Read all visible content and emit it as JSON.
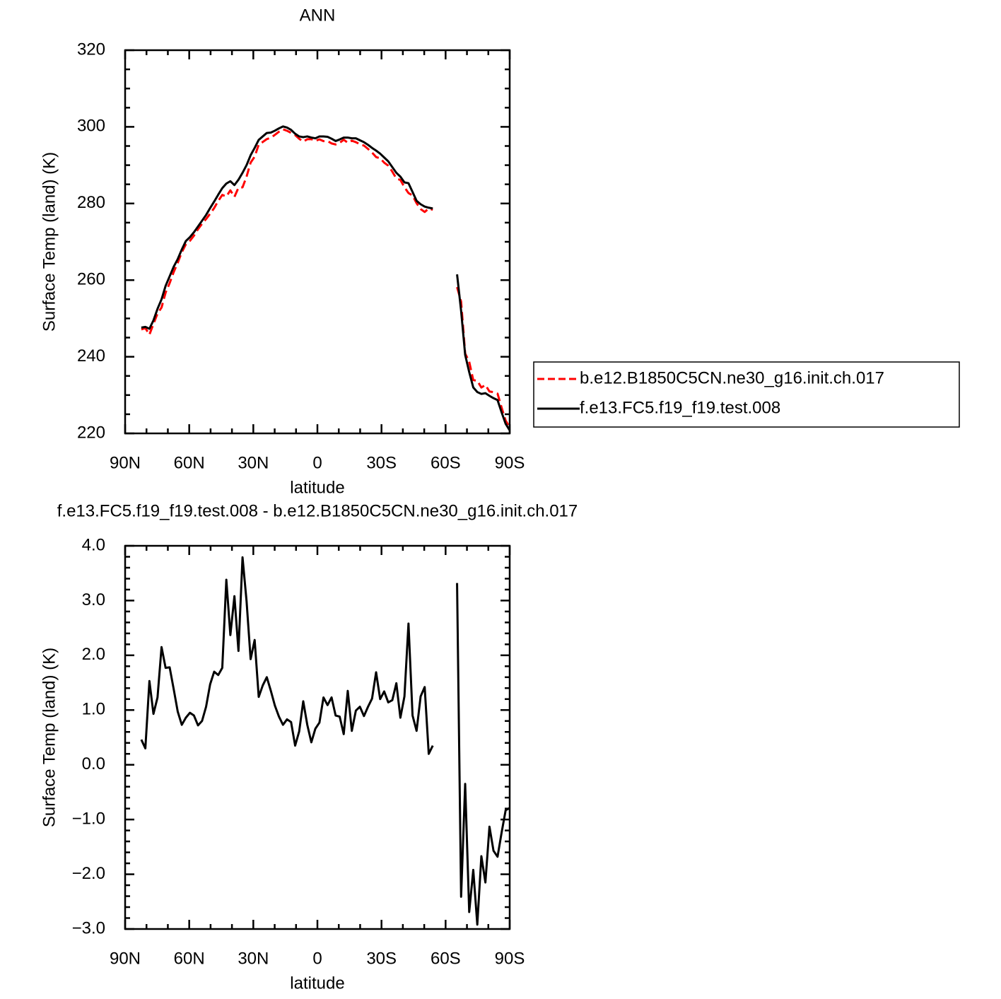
{
  "chart_data": [
    {
      "type": "line",
      "title": "ANN",
      "xlabel": "latitude",
      "ylabel": "Surface Temp (land) (K)",
      "x": [
        82.42,
        80.53,
        78.63,
        76.74,
        74.84,
        72.95,
        71.05,
        69.16,
        67.26,
        65.37,
        63.47,
        61.58,
        59.68,
        57.79,
        55.89,
        54.0,
        52.11,
        50.21,
        48.32,
        46.42,
        44.53,
        42.63,
        40.74,
        38.84,
        36.95,
        35.05,
        33.16,
        31.26,
        29.37,
        27.47,
        25.58,
        23.69,
        21.79,
        19.89,
        18.0,
        16.11,
        14.21,
        12.32,
        10.42,
        8.53,
        6.63,
        4.74,
        2.84,
        0.95,
        -0.95,
        -2.84,
        -4.74,
        -6.63,
        -8.53,
        -10.42,
        -12.32,
        -14.21,
        -16.11,
        -18.0,
        -19.89,
        -21.79,
        -23.69,
        -25.58,
        -27.47,
        -29.37,
        -31.26,
        -33.16,
        -35.05,
        -36.95,
        -38.84,
        -40.74,
        -42.63,
        -44.53,
        -46.42,
        -48.32,
        -50.21,
        -52.11,
        -54.0,
        -55.89,
        -65.37,
        -67.26,
        -69.16,
        -71.05,
        -72.95,
        -74.84,
        -76.74,
        -78.63,
        -80.53,
        -82.42,
        -84.32,
        -86.21,
        -88.11,
        -90.0
      ],
      "series": [
        {
          "name": "b.e12.B1850C5CN.ne30_g16.init.ch.017",
          "color": "#ff0000",
          "dashed": true,
          "values": [
            247.14,
            247.5,
            245.77,
            248.57,
            251.27,
            252.85,
            256.73,
            259.22,
            262.12,
            264.53,
            267.27,
            269.34,
            270.25,
            271.6,
            273.28,
            274.7,
            275.94,
            277.33,
            278.8,
            280.66,
            282.23,
            281.82,
            283.43,
            281.72,
            284.12,
            284.21,
            287.01,
            290.67,
            292.22,
            295.36,
            296.05,
            296.8,
            297.15,
            297.92,
            298.72,
            299.37,
            298.97,
            298.42,
            297.85,
            296.89,
            296.14,
            296.77,
            296.79,
            296.34,
            296.73,
            296.27,
            296.31,
            295.67,
            295.4,
            295.82,
            296.64,
            295.85,
            296.38,
            296.01,
            295.44,
            295.11,
            294.24,
            293.29,
            292.11,
            291.8,
            290.66,
            289.86,
            288.32,
            286.51,
            286.14,
            284.25,
            282.72,
            282.1,
            280.08,
            278.55,
            277.78,
            278.7,
            278.35,
            null,
            258.18,
            254.41,
            240.85,
            238.69,
            233.92,
            233.72,
            231.97,
            232.65,
            230.93,
            230.77,
            230.38,
            226.74,
            223.33,
            221.59
          ]
        },
        {
          "name": "f.e13.FC5.f19_f19.test.008",
          "color": "#000000",
          "dashed": false,
          "values": [
            247.6,
            247.8,
            247.3,
            249.5,
            252.5,
            255,
            258.5,
            261,
            263.5,
            265.5,
            268,
            270.2,
            271.2,
            272.5,
            274,
            275.5,
            277,
            278.8,
            280.5,
            282.3,
            284,
            285.2,
            285.8,
            284.8,
            286.2,
            288,
            290,
            292.6,
            294.5,
            296.6,
            297.5,
            298.4,
            298.5,
            299,
            299.6,
            300.1,
            299.8,
            299.2,
            298.2,
            297.5,
            297.3,
            297.5,
            297.2,
            297,
            297.5,
            297.5,
            297.4,
            296.9,
            296.3,
            296.7,
            297.2,
            297.2,
            297,
            297,
            296.5,
            296,
            295.3,
            294.5,
            293.8,
            293,
            292,
            291,
            289.5,
            288,
            287,
            285.5,
            285.3,
            283,
            280.7,
            279.8,
            279.2,
            278.9,
            278.7,
            null,
            261.5,
            252,
            240.5,
            236,
            232,
            230.8,
            230.3,
            230.5,
            229.8,
            229.2,
            228.7,
            225.5,
            222.5,
            220.8
          ]
        }
      ],
      "xlim": [
        90,
        -90
      ],
      "xticks": [
        {
          "value": 90,
          "label": "90N"
        },
        {
          "value": 60,
          "label": "60N"
        },
        {
          "value": 30,
          "label": "30N"
        },
        0,
        {
          "value": -30,
          "label": "30S"
        },
        {
          "value": -60,
          "label": "60S"
        },
        {
          "value": -90,
          "label": "90S"
        }
      ],
      "xminorticks": [
        80,
        70,
        50,
        40,
        20,
        10,
        -10,
        -20,
        -40,
        -50,
        -70,
        -80
      ],
      "ylim": [
        220,
        320
      ],
      "yticks": [
        220,
        240,
        260,
        280,
        300,
        320
      ],
      "yminorticks": [
        225,
        230,
        235,
        245,
        250,
        255,
        265,
        270,
        275,
        285,
        290,
        295,
        305,
        310,
        315
      ],
      "legend": "right"
    },
    {
      "type": "line",
      "title": "f.e13.FC5.f19_f19.test.008 - b.e12.B1850C5CN.ne30_g16.init.ch.017",
      "xlabel": "latitude",
      "ylabel": "Surface Temp (land) (K)",
      "x": [
        82.42,
        80.53,
        78.63,
        76.74,
        74.84,
        72.95,
        71.05,
        69.16,
        67.26,
        65.37,
        63.47,
        61.58,
        59.68,
        57.79,
        55.89,
        54.0,
        52.11,
        50.21,
        48.32,
        46.42,
        44.53,
        42.63,
        40.74,
        38.84,
        36.95,
        35.05,
        33.16,
        31.26,
        29.37,
        27.47,
        25.58,
        23.69,
        21.79,
        19.89,
        18.0,
        16.11,
        14.21,
        12.32,
        10.42,
        8.53,
        6.63,
        4.74,
        2.84,
        0.95,
        -0.95,
        -2.84,
        -4.74,
        -6.63,
        -8.53,
        -10.42,
        -12.32,
        -14.21,
        -16.11,
        -18.0,
        -19.89,
        -21.79,
        -23.69,
        -25.58,
        -27.47,
        -29.37,
        -31.26,
        -33.16,
        -35.05,
        -36.95,
        -38.84,
        -40.74,
        -42.63,
        -44.53,
        -46.42,
        -48.32,
        -50.21,
        -52.11,
        -54.0,
        -55.89,
        -65.37,
        -67.26,
        -69.16,
        -71.05,
        -72.95,
        -74.84,
        -76.74,
        -78.63,
        -80.53,
        -82.42,
        -84.32,
        -86.21,
        -88.11,
        -90.0
      ],
      "series": [
        {
          "color": "#000000",
          "dashed": false,
          "values": [
            0.46,
            0.3,
            1.53,
            0.93,
            1.23,
            2.15,
            1.77,
            1.78,
            1.38,
            0.97,
            0.73,
            0.86,
            0.95,
            0.9,
            0.72,
            0.8,
            1.06,
            1.47,
            1.7,
            1.64,
            1.77,
            3.38,
            2.37,
            3.08,
            2.08,
            3.79,
            2.99,
            1.93,
            2.28,
            1.24,
            1.45,
            1.6,
            1.35,
            1.08,
            0.88,
            0.73,
            0.83,
            0.78,
            0.35,
            0.61,
            1.16,
            0.73,
            0.41,
            0.66,
            0.77,
            1.23,
            1.09,
            1.23,
            0.9,
            0.88,
            0.56,
            1.35,
            0.62,
            0.99,
            1.06,
            0.89,
            1.06,
            1.21,
            1.69,
            1.2,
            1.34,
            1.14,
            1.18,
            1.49,
            0.86,
            1.25,
            2.58,
            0.9,
            0.62,
            1.25,
            1.42,
            0.2,
            0.35,
            null,
            3.32,
            -2.41,
            -0.35,
            -2.69,
            -1.92,
            -2.92,
            -1.67,
            -2.15,
            -1.13,
            -1.57,
            -1.68,
            -1.24,
            -0.83,
            -0.79
          ]
        }
      ],
      "xlim": [
        90,
        -90
      ],
      "xticks": [
        {
          "value": 90,
          "label": "90N"
        },
        {
          "value": 60,
          "label": "60N"
        },
        {
          "value": 30,
          "label": "30N"
        },
        0,
        {
          "value": -30,
          "label": "30S"
        },
        {
          "value": -60,
          "label": "60S"
        },
        {
          "value": -90,
          "label": "90S"
        }
      ],
      "xminorticks": [
        80,
        70,
        50,
        40,
        20,
        10,
        -10,
        -20,
        -40,
        -50,
        -70,
        -80
      ],
      "ylim": [
        -3,
        4
      ],
      "yticks": [
        {
          "value": -3,
          "label": "−3.0"
        },
        {
          "value": -2,
          "label": "−2.0"
        },
        {
          "value": -1,
          "label": "−1.0"
        },
        {
          "value": 0,
          "label": "0.0"
        },
        {
          "value": 1,
          "label": "1.0"
        },
        {
          "value": 2,
          "label": "2.0"
        },
        {
          "value": 3,
          "label": "3.0"
        },
        {
          "value": 4,
          "label": "4.0"
        }
      ],
      "yminorticks": [
        -2.8,
        -2.6,
        -2.4,
        -2.2,
        -1.8,
        -1.6,
        -1.4,
        -1.2,
        -0.8,
        -0.6,
        -0.4,
        -0.2,
        0.2,
        0.4,
        0.6,
        0.8,
        1.2,
        1.4,
        1.6,
        1.8,
        2.2,
        2.4,
        2.6,
        2.8,
        3.2,
        3.4,
        3.6,
        3.8
      ]
    }
  ]
}
